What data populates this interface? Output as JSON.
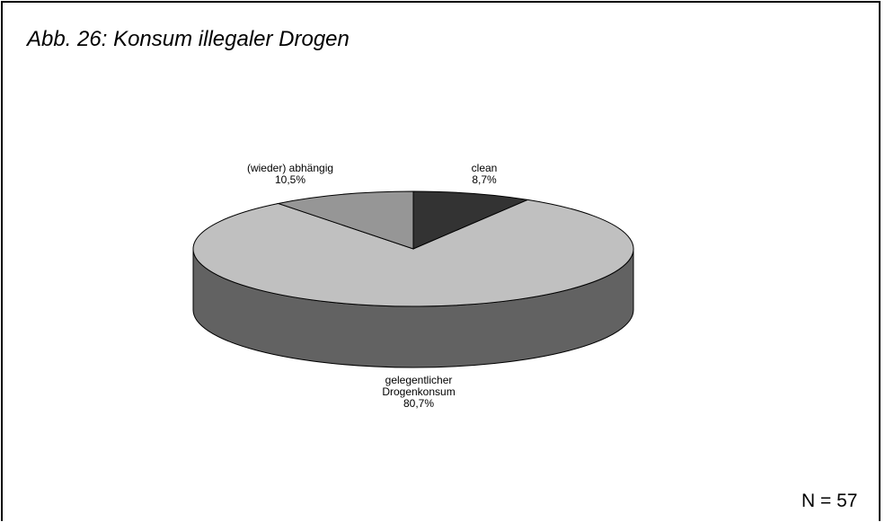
{
  "title": "Abb. 26: Konsum illegaler Drogen",
  "sample_note": "N = 57",
  "chart_data": {
    "type": "pie",
    "title": "Abb. 26: Konsum illegaler Drogen",
    "style": "3d",
    "start_angle_deg": 0,
    "direction": "clockwise",
    "slices": [
      {
        "label": "clean",
        "value": 8.7,
        "value_label": "8,7%",
        "color": "#333333",
        "side_color": "#1c1c1c"
      },
      {
        "label": "gelegentlicher Drogenkonsum",
        "label_lines": [
          "gelegentlicher",
          "Drogenkonsum"
        ],
        "value": 80.7,
        "value_label": "80,7%",
        "color": "#c0c0c0",
        "side_color": "#626262"
      },
      {
        "label": "(wieder) abhängig",
        "value": 10.5,
        "value_label": "10,5%",
        "color": "#969696",
        "side_color": "#5a5a5a"
      }
    ],
    "note": "N = 57"
  }
}
